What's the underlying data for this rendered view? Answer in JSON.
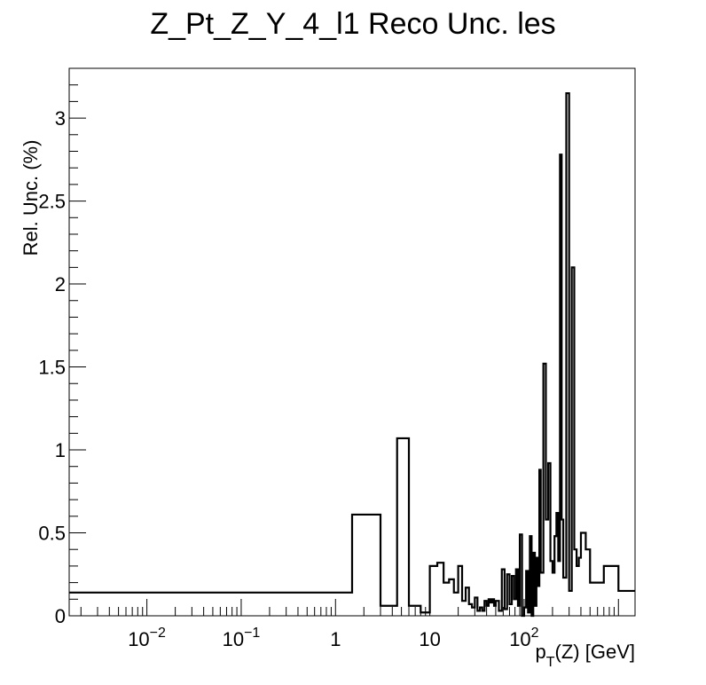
{
  "chart_data": {
    "type": "histogram-step",
    "title": "Z_Pt_Z_Y_4_l1 Reco Unc. les",
    "xlabel_main": "p",
    "xlabel_sub": "T",
    "xlabel_rest": "(Z) [GeV]",
    "ylabel": "Rel. Unc. (%)",
    "xscale": "log",
    "xlim": [
      0.0015,
      1500
    ],
    "ylim": [
      0,
      3.3
    ],
    "grid": false,
    "x_ticks": [
      {
        "value": 0.01,
        "base": "10",
        "exp": "−2"
      },
      {
        "value": 0.1,
        "base": "10",
        "exp": "−1"
      },
      {
        "value": 1,
        "base": "1",
        "exp": ""
      },
      {
        "value": 10,
        "base": "10",
        "exp": ""
      },
      {
        "value": 100,
        "base": "10",
        "exp": "2"
      }
    ],
    "y_ticks": [
      {
        "value": 0,
        "label": "0"
      },
      {
        "value": 0.5,
        "label": "0.5"
      },
      {
        "value": 1,
        "label": "1"
      },
      {
        "value": 1.5,
        "label": "1.5"
      },
      {
        "value": 2,
        "label": "2"
      },
      {
        "value": 2.5,
        "label": "2.5"
      },
      {
        "value": 3,
        "label": "3"
      }
    ],
    "bin_edges": [
      0.0015,
      1.5,
      3.0,
      4.5,
      6.0,
      8.0,
      10.0,
      12.0,
      14.0,
      16.0,
      18.0,
      20.0,
      22.0,
      24.0,
      26.0,
      28.0,
      30.0,
      32.0,
      34.0,
      36.0,
      38.0,
      40.0,
      42.0,
      44.0,
      46.0,
      48.0,
      50.0,
      54.0,
      58.0,
      62.0,
      66.0,
      70.0,
      74.0,
      78.0,
      82.0,
      86.0,
      90.0,
      95.0,
      100.0,
      105.0,
      110.0,
      115.0,
      120.0,
      125.0,
      130.0,
      135.0,
      140.0,
      145.0,
      150.0,
      160.0,
      170.0,
      180.0,
      190.0,
      200.0,
      210.0,
      220.0,
      230.0,
      240.0,
      250.0,
      260.0,
      280.0,
      300.0,
      320.0,
      340.0,
      360.0,
      380.0,
      400.0,
      450.0,
      500.0,
      700.0,
      1000.0,
      1500.0
    ],
    "values": [
      0.14,
      0.61,
      0.06,
      1.07,
      0.06,
      0.02,
      0.3,
      0.32,
      0.2,
      0.22,
      0.14,
      0.3,
      0.09,
      0.17,
      0.07,
      0.05,
      0.11,
      0.03,
      0.05,
      0.03,
      0.09,
      0.06,
      0.1,
      0.08,
      0.1,
      0.06,
      0.09,
      0.03,
      0.28,
      0.04,
      0.25,
      0.07,
      0.24,
      0.1,
      0.28,
      0.06,
      0.49,
      0.0,
      0.05,
      0.27,
      0.02,
      0.48,
      0.0,
      0.38,
      0.06,
      0.35,
      0.18,
      0.88,
      0.26,
      1.52,
      0.58,
      0.92,
      0.33,
      0.26,
      0.48,
      0.62,
      0.33,
      2.78,
      0.58,
      0.23,
      3.15,
      0.15,
      2.1,
      0.4,
      0.3,
      0.35,
      0.5,
      0.4,
      0.2,
      0.3,
      0.15
    ]
  }
}
